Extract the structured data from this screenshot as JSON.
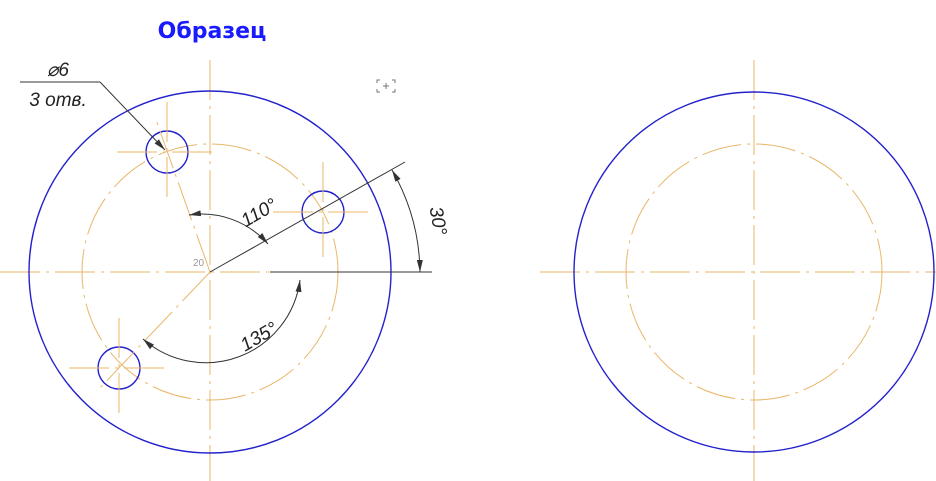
{
  "title": "Образец",
  "leader": {
    "diameter": "⌀6",
    "note": "3 отв."
  },
  "dimensions": [
    {
      "label": "110°"
    },
    {
      "label": "30°"
    },
    {
      "label": "135°"
    }
  ],
  "center_label": "20"
}
